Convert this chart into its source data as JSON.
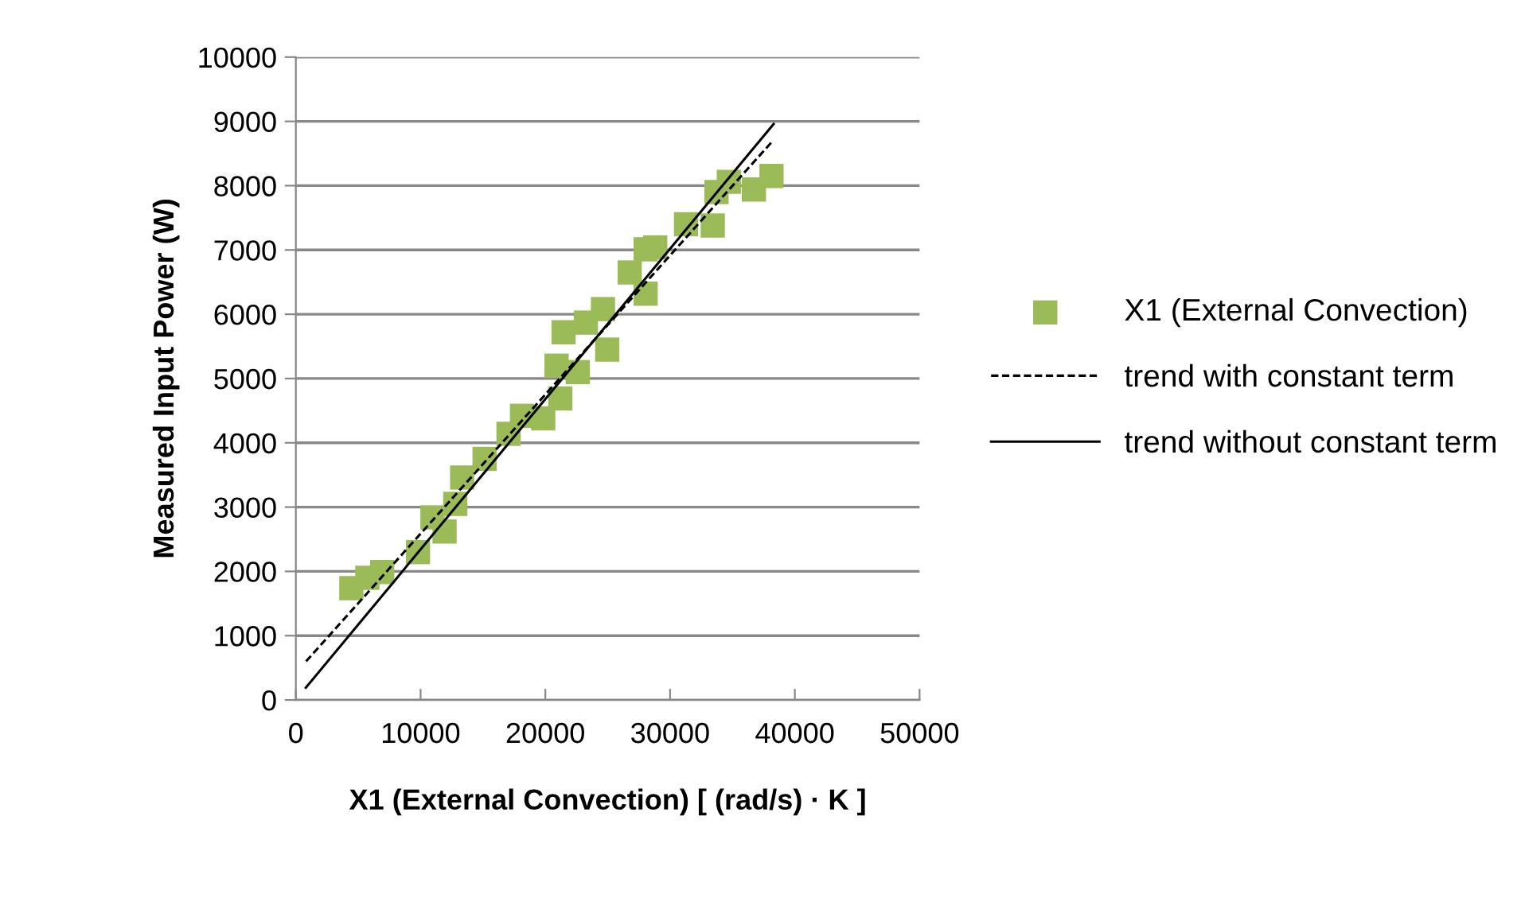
{
  "chart_data": {
    "type": "scatter",
    "xlabel": "X1 (External Convection) [ (rad/s) · K ]",
    "ylabel": "Measured Input Power (W)",
    "xlim": [
      0,
      50000
    ],
    "xticks": [
      0,
      10000,
      20000,
      30000,
      40000,
      50000
    ],
    "ylim": [
      0,
      10000
    ],
    "yticks": [
      0,
      1000,
      2000,
      3000,
      4000,
      5000,
      6000,
      7000,
      8000,
      9000,
      10000
    ],
    "grid": "y",
    "legend": "right",
    "marker": "square",
    "series": [
      {
        "name": "X1 (External Convection)",
        "color": "#9bbb59",
        "x": [
          4450,
          5730,
          6920,
          9790,
          10950,
          11920,
          12780,
          13330,
          15130,
          17050,
          18130,
          19830,
          20900,
          21200,
          22600,
          21460,
          23250,
          24620,
          24960,
          26760,
          28040,
          28810,
          28040,
          31280,
          33420,
          33720,
          34710,
          36720,
          38130
        ],
        "values": [
          1740,
          1900,
          1990,
          2300,
          2840,
          2620,
          3050,
          3460,
          3750,
          4140,
          4420,
          4380,
          5200,
          4690,
          5100,
          5720,
          5870,
          6080,
          5450,
          6650,
          7010,
          7040,
          6320,
          7400,
          7380,
          7900,
          8060,
          7940,
          8150
        ]
      },
      {
        "name": "trend with constant term",
        "type": "line",
        "color": "#000000",
        "line_style": "dashed",
        "marker": "none",
        "x": [
          820,
          38200
        ],
        "values": [
          600,
          8690
        ]
      },
      {
        "name": "trend without constant term",
        "type": "line",
        "color": "#000000",
        "line_style": "solid",
        "marker": "none",
        "x": [
          800,
          38300
        ],
        "values": [
          190,
          8960
        ]
      }
    ]
  }
}
